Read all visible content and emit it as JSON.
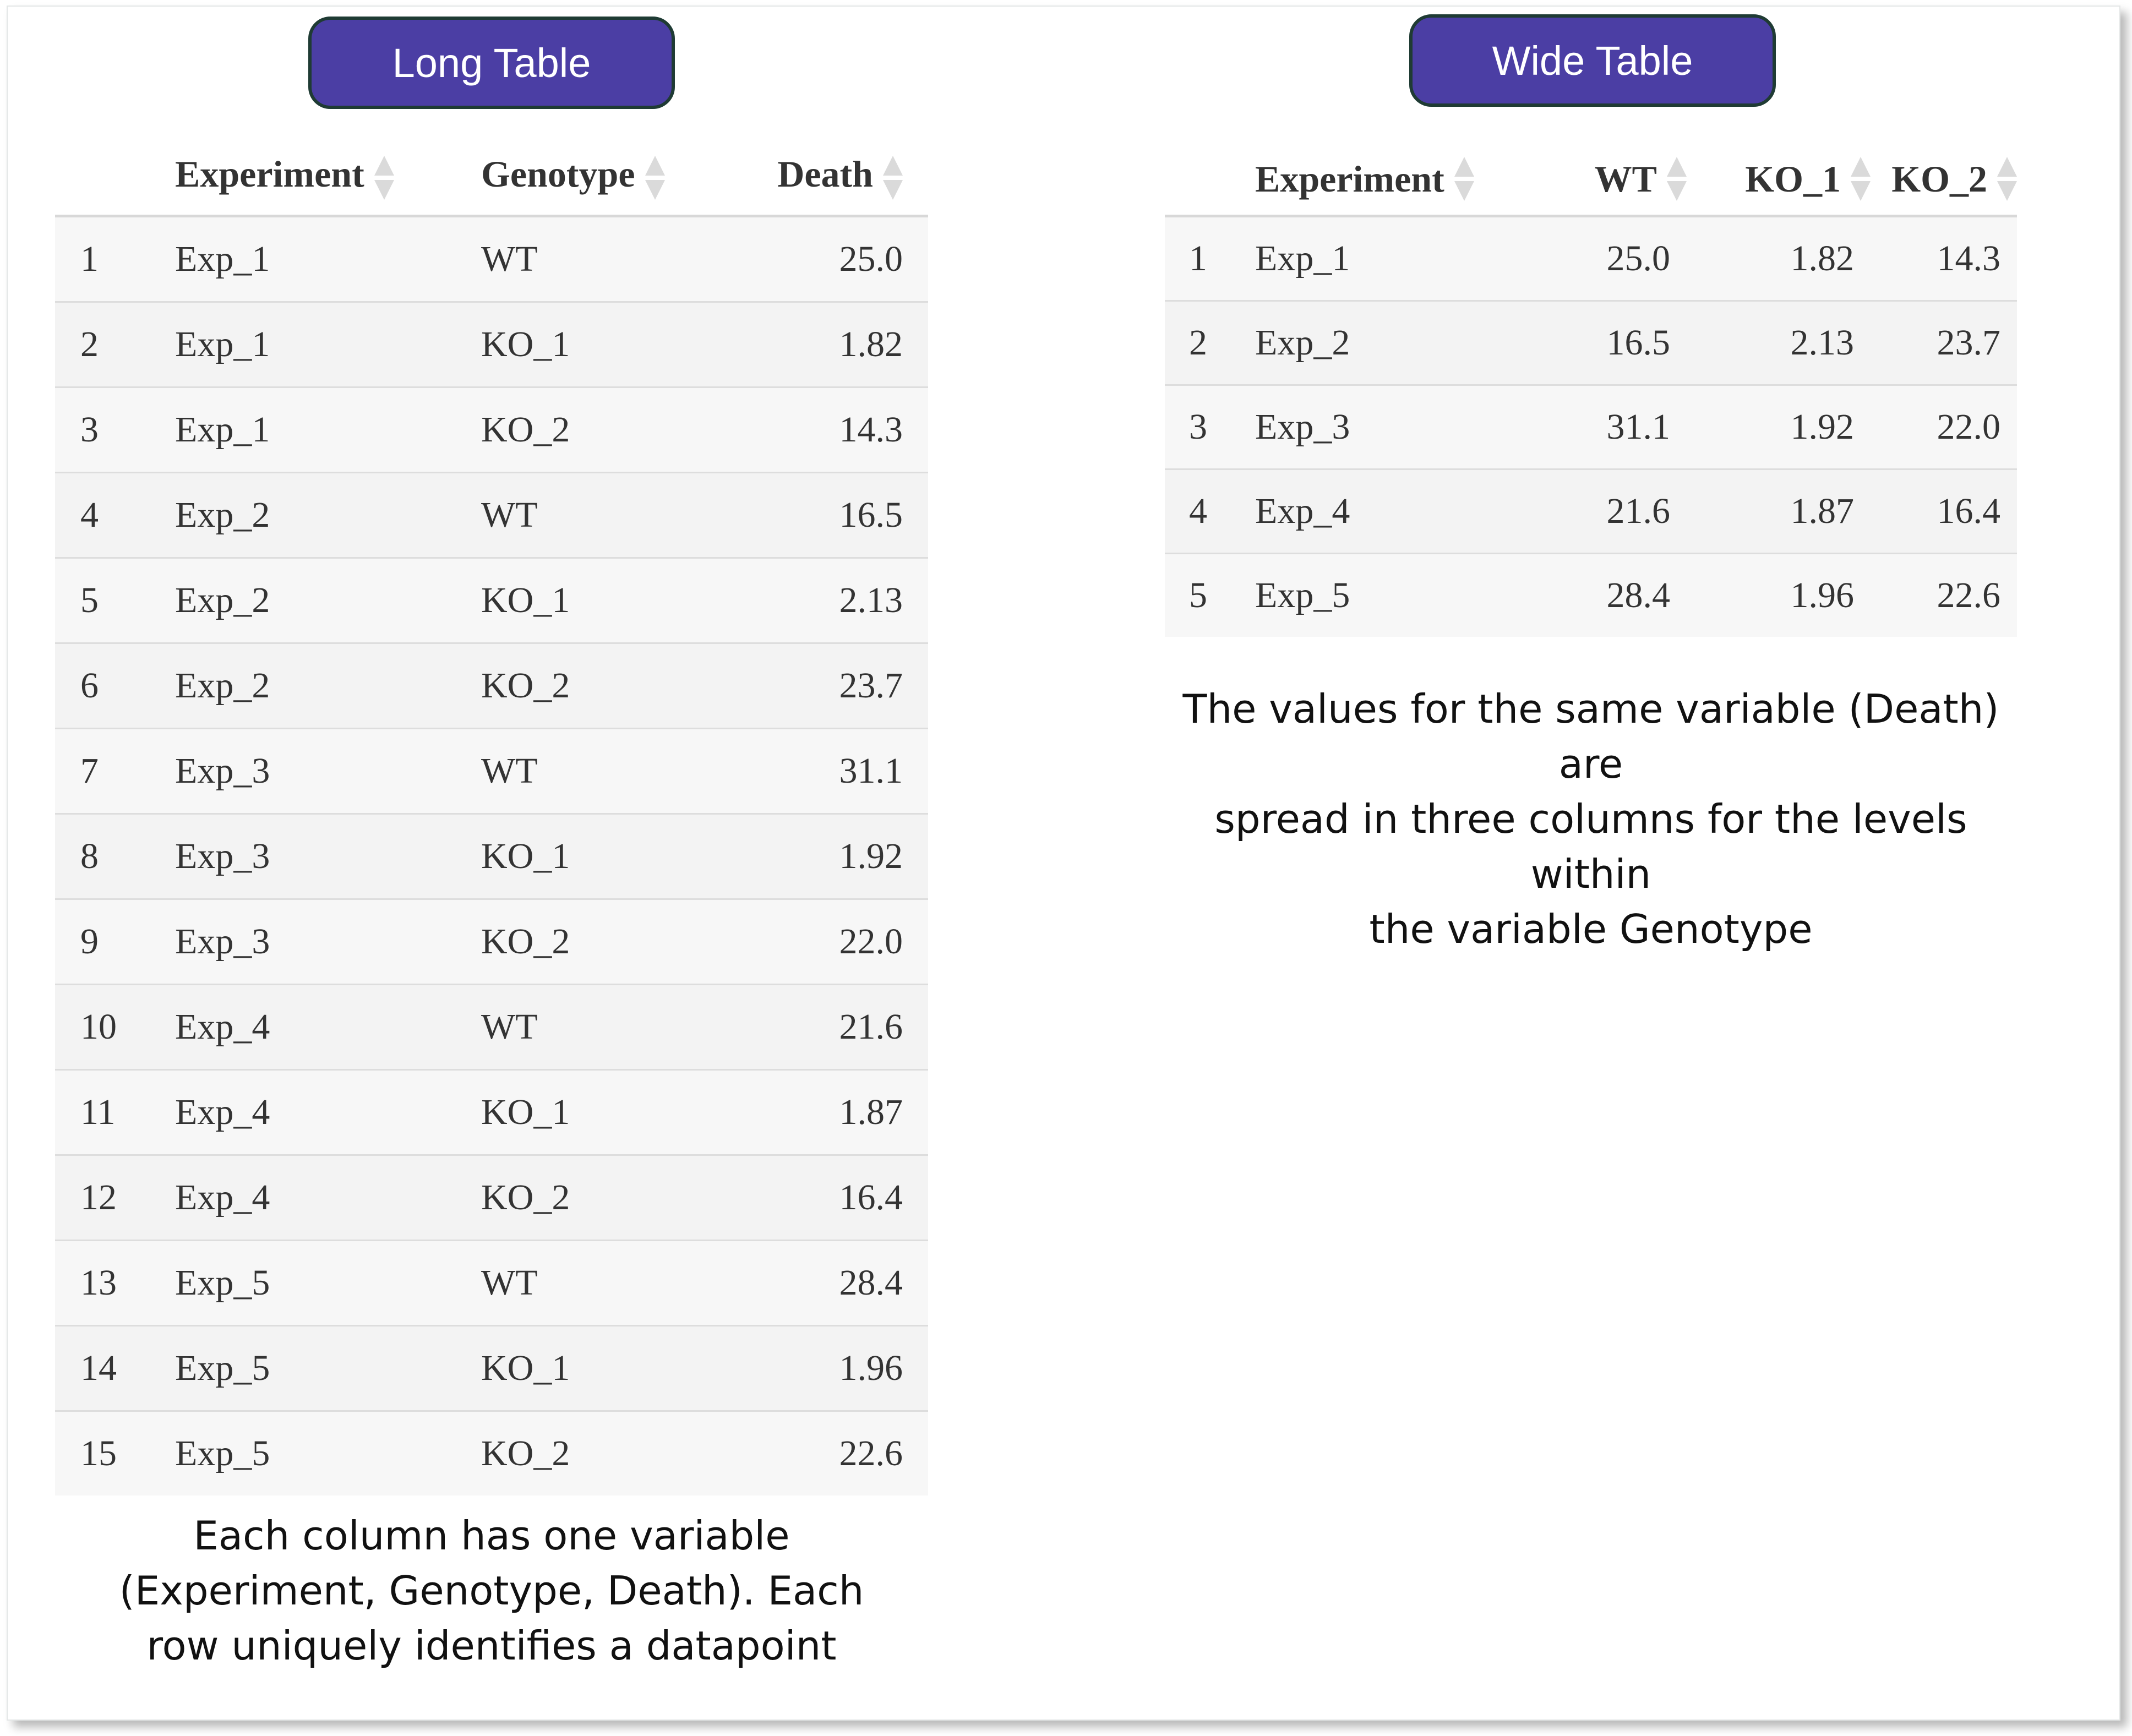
{
  "long_table": {
    "title": "Long Table",
    "headers": {
      "index": "",
      "experiment": "Experiment",
      "genotype": "Genotype",
      "death": "Death"
    },
    "rows": [
      {
        "index": "1",
        "experiment": "Exp_1",
        "genotype": "WT",
        "death": "25.0"
      },
      {
        "index": "2",
        "experiment": "Exp_1",
        "genotype": "KO_1",
        "death": "1.82"
      },
      {
        "index": "3",
        "experiment": "Exp_1",
        "genotype": "KO_2",
        "death": "14.3"
      },
      {
        "index": "4",
        "experiment": "Exp_2",
        "genotype": "WT",
        "death": "16.5"
      },
      {
        "index": "5",
        "experiment": "Exp_2",
        "genotype": "KO_1",
        "death": "2.13"
      },
      {
        "index": "6",
        "experiment": "Exp_2",
        "genotype": "KO_2",
        "death": "23.7"
      },
      {
        "index": "7",
        "experiment": "Exp_3",
        "genotype": "WT",
        "death": "31.1"
      },
      {
        "index": "8",
        "experiment": "Exp_3",
        "genotype": "KO_1",
        "death": "1.92"
      },
      {
        "index": "9",
        "experiment": "Exp_3",
        "genotype": "KO_2",
        "death": "22.0"
      },
      {
        "index": "10",
        "experiment": "Exp_4",
        "genotype": "WT",
        "death": "21.6"
      },
      {
        "index": "11",
        "experiment": "Exp_4",
        "genotype": "KO_1",
        "death": "1.87"
      },
      {
        "index": "12",
        "experiment": "Exp_4",
        "genotype": "KO_2",
        "death": "16.4"
      },
      {
        "index": "13",
        "experiment": "Exp_5",
        "genotype": "WT",
        "death": "28.4"
      },
      {
        "index": "14",
        "experiment": "Exp_5",
        "genotype": "KO_1",
        "death": "1.96"
      },
      {
        "index": "15",
        "experiment": "Exp_5",
        "genotype": "KO_2",
        "death": "22.6"
      }
    ],
    "caption_lines": [
      "Each column has one variable",
      "(Experiment, Genotype, Death). Each",
      "row uniquely identifies a datapoint"
    ]
  },
  "wide_table": {
    "title": "Wide Table",
    "headers": {
      "index": "",
      "experiment": "Experiment",
      "wt": "WT",
      "ko_1": "KO_1",
      "ko_2": "KO_2"
    },
    "rows": [
      {
        "index": "1",
        "experiment": "Exp_1",
        "wt": "25.0",
        "ko_1": "1.82",
        "ko_2": "14.3"
      },
      {
        "index": "2",
        "experiment": "Exp_2",
        "wt": "16.5",
        "ko_1": "2.13",
        "ko_2": "23.7"
      },
      {
        "index": "3",
        "experiment": "Exp_3",
        "wt": "31.1",
        "ko_1": "1.92",
        "ko_2": "22.0"
      },
      {
        "index": "4",
        "experiment": "Exp_4",
        "wt": "21.6",
        "ko_1": "1.87",
        "ko_2": "16.4"
      },
      {
        "index": "5",
        "experiment": "Exp_5",
        "wt": "28.4",
        "ko_1": "1.96",
        "ko_2": "22.6"
      }
    ],
    "caption_lines": [
      "The values for the same variable (Death) are",
      "spread in three columns for the levels within",
      "the variable Genotype"
    ]
  },
  "colors": {
    "title_pill_fill": "#4b3ea4",
    "title_pill_border": "#1f3b34",
    "row_stripe": "#f7f7f7",
    "sort_arrow": "#dadada"
  },
  "icons": {
    "sort": "sort-arrows-icon"
  }
}
